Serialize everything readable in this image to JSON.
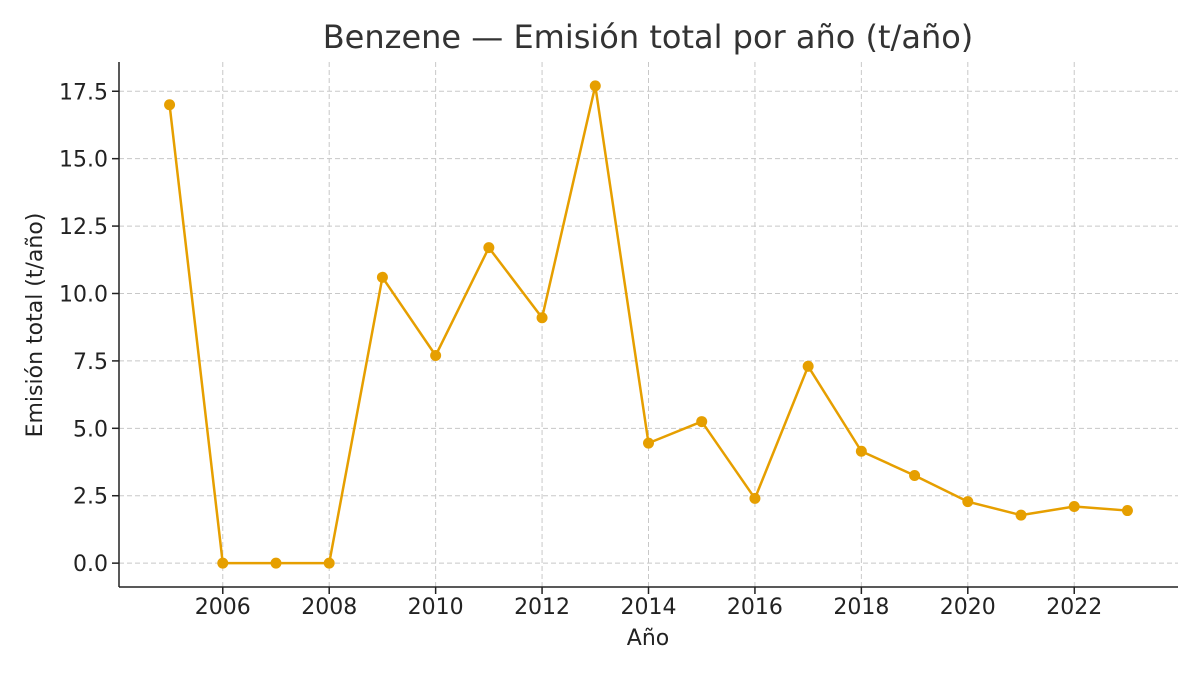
{
  "chart_data": {
    "type": "line",
    "title": "Benzene — Emisión total por año (t/año)",
    "xlabel": "Año",
    "ylabel": "Emisión total (t/año)",
    "x": [
      2005,
      2006,
      2007,
      2008,
      2009,
      2010,
      2011,
      2012,
      2013,
      2014,
      2015,
      2016,
      2017,
      2018,
      2019,
      2020,
      2021,
      2022,
      2023
    ],
    "series": [
      {
        "name": "",
        "values": [
          17.0,
          0.0,
          0.0,
          0.0,
          10.6,
          7.7,
          11.7,
          9.1,
          17.7,
          4.45,
          5.25,
          2.4,
          7.3,
          4.15,
          3.25,
          2.28,
          1.78,
          2.1,
          1.95
        ]
      }
    ],
    "xticks": [
      "2006",
      "2008",
      "2010",
      "2012",
      "2014",
      "2016",
      "2018",
      "2020",
      "2022"
    ],
    "yticks": [
      "0.0",
      "2.5",
      "5.0",
      "7.5",
      "10.0",
      "12.5",
      "15.0",
      "17.5"
    ],
    "xlim": [
      2004.05,
      2023.95
    ],
    "ylim": [
      -0.885,
      18.585
    ],
    "grid": true,
    "color": "#e69f00"
  }
}
